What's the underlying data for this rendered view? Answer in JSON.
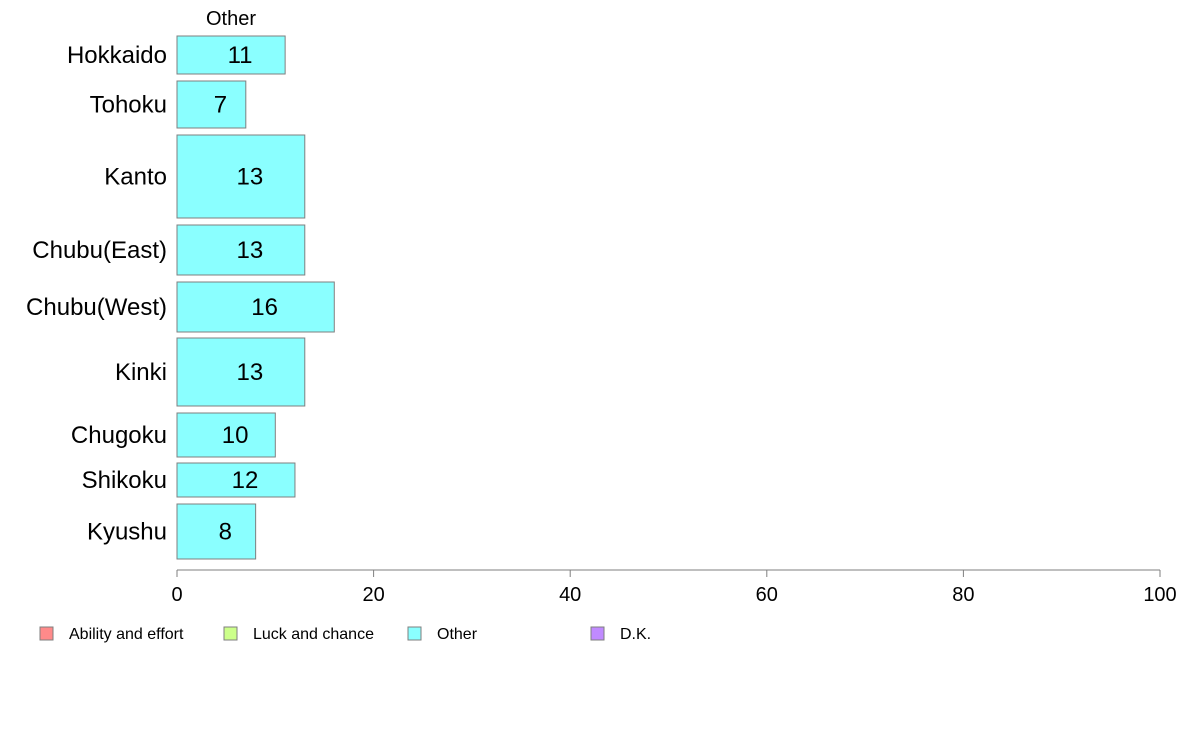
{
  "chart_data": {
    "type": "bar",
    "orientation": "horizontal",
    "column_header": "Other",
    "categories": [
      "Hokkaido",
      "Tohoku",
      "Kanto",
      "Chubu(East)",
      "Chubu(West)",
      "Kinki",
      "Chugoku",
      "Shikoku",
      "Kyushu"
    ],
    "series": [
      {
        "name": "Other",
        "values": [
          11,
          7,
          13,
          13,
          16,
          13,
          10,
          12,
          8
        ],
        "color": "#8AFFFF"
      }
    ],
    "xlim": [
      0,
      100
    ],
    "xticks": [
      0,
      20,
      40,
      60,
      80,
      100
    ],
    "grid": false,
    "legend_position": "bottom-left",
    "legend": [
      {
        "label": "Ability and effort",
        "color": "#FF8A8A"
      },
      {
        "label": "Luck and chance",
        "color": "#CCFF8A"
      },
      {
        "label": "Other",
        "color": "#8AFFFF"
      },
      {
        "label": "D.K.",
        "color": "#C08AFF"
      }
    ],
    "bar_border_color": "#7F7F7F",
    "axis_color": "#7F7F7F"
  }
}
